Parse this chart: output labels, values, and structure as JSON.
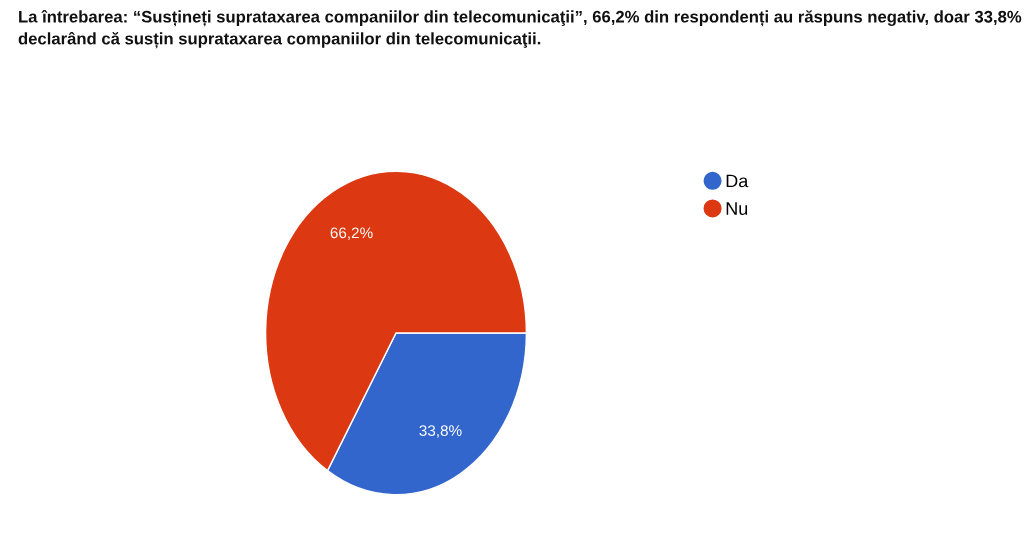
{
  "chart_data": {
    "type": "pie",
    "title": "La întrebarea: “Susțineți suprataxarea companiilor din telecomunicaţii”, 66,2% din respondenți au răspuns negativ, doar 33,8% declarând că susțin suprataxarea companiilor din telecomunicaţii.",
    "categories": [
      "Da",
      "Nu"
    ],
    "values": [
      33.8,
      66.2
    ],
    "colors": [
      "#3366cc",
      "#dc3912"
    ],
    "value_labels": [
      "33,8%",
      "66,2%"
    ],
    "legend": "top right"
  }
}
